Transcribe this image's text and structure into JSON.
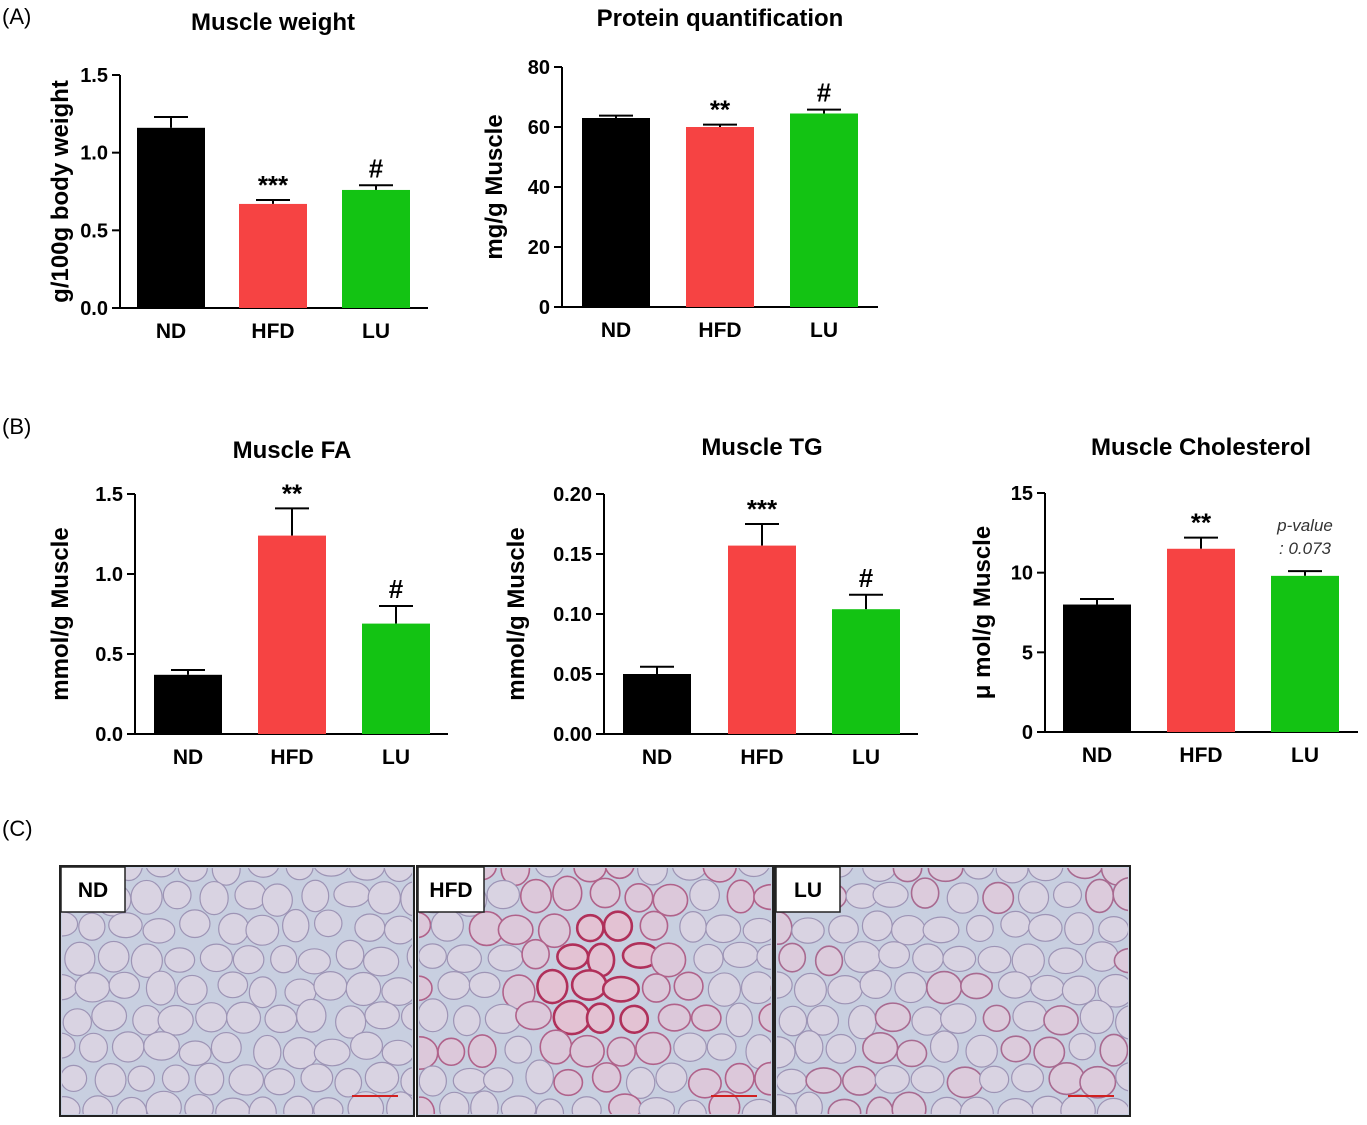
{
  "panel_labels": [
    "(A)",
    "(B)",
    "(C)"
  ],
  "colors": {
    "ND": "#000000",
    "HFD": "#f64343",
    "LU": "#13c313",
    "axis": "#000000"
  },
  "chart_data": [
    {
      "type": "bar",
      "title": "Muscle weight",
      "ylabel": "g/100g body weight",
      "categories": [
        "ND",
        "HFD",
        "LU"
      ],
      "values": [
        1.16,
        0.67,
        0.76
      ],
      "errors": [
        0.07,
        0.025,
        0.03
      ],
      "ylim": [
        0,
        1.5
      ],
      "yticks": [
        "0.0",
        "0.5",
        "1.0",
        "1.5"
      ],
      "annotations": [
        "",
        "***",
        "#"
      ]
    },
    {
      "type": "bar",
      "title": "Protein quantification",
      "ylabel": "mg/g Muscle",
      "categories": [
        "ND",
        "HFD",
        "LU"
      ],
      "values": [
        63,
        60,
        64.5
      ],
      "errors": [
        0.8,
        0.8,
        1.3
      ],
      "ylim": [
        0,
        80
      ],
      "yticks": [
        "0",
        "20",
        "40",
        "60",
        "80"
      ],
      "annotations": [
        "",
        "**",
        "#"
      ]
    },
    {
      "type": "bar",
      "title": "Muscle FA",
      "ylabel": "mmol/g Muscle",
      "categories": [
        "ND",
        "HFD",
        "LU"
      ],
      "values": [
        0.37,
        1.24,
        0.69
      ],
      "errors": [
        0.03,
        0.17,
        0.11
      ],
      "ylim": [
        0,
        1.5
      ],
      "yticks": [
        "0.0",
        "0.5",
        "1.0",
        "1.5"
      ],
      "annotations": [
        "",
        "**",
        "#"
      ]
    },
    {
      "type": "bar",
      "title": "Muscle TG",
      "ylabel": "mmol/g Muscle",
      "categories": [
        "ND",
        "HFD",
        "LU"
      ],
      "values": [
        0.05,
        0.157,
        0.104
      ],
      "errors": [
        0.006,
        0.018,
        0.012
      ],
      "ylim": [
        0,
        0.2
      ],
      "yticks": [
        "0.00",
        "0.05",
        "0.10",
        "0.15",
        "0.20"
      ],
      "annotations": [
        "",
        "***",
        "#"
      ]
    },
    {
      "type": "bar",
      "title": "Muscle Cholesterol",
      "ylabel": "μ mol/g Muscle",
      "categories": [
        "ND",
        "HFD",
        "LU"
      ],
      "values": [
        8.0,
        11.5,
        9.8
      ],
      "errors": [
        0.35,
        0.7,
        0.3
      ],
      "ylim": [
        0,
        15
      ],
      "yticks": [
        "0",
        "5",
        "10",
        "15"
      ],
      "annotations": [
        "",
        "**",
        ""
      ],
      "note": [
        "p-value",
        ": 0.073"
      ]
    }
  ],
  "micrographs": [
    {
      "label": "ND",
      "stain": "none"
    },
    {
      "label": "HFD",
      "stain": "heavy"
    },
    {
      "label": "LU",
      "stain": "light"
    }
  ]
}
